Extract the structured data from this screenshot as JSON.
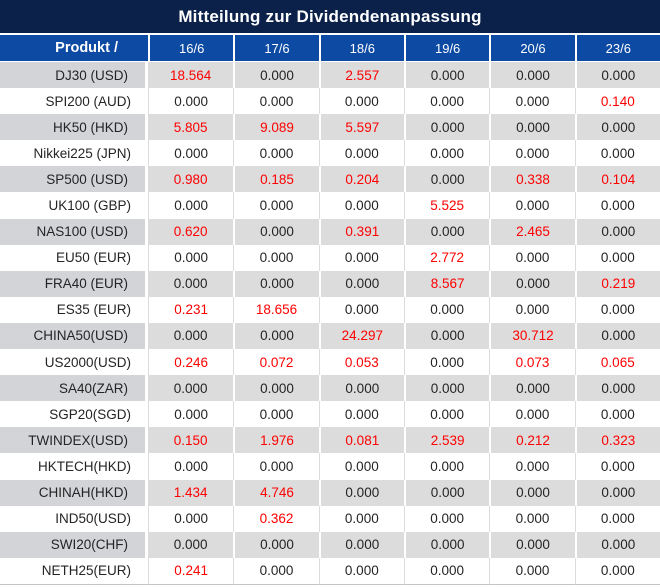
{
  "title": "Mitteilung zur Dividendenanpassung",
  "colors": {
    "title_bg": "#0b2149",
    "header_bg": "#0d4aa3",
    "row_stripe": "#dcdcdc",
    "label_stripe": "#d2d4d8",
    "value_highlight_red": "#fe0000",
    "value_text": "#242424"
  },
  "table": {
    "product_header": "Produkt /",
    "date_headers": [
      "16/6",
      "17/6",
      "18/6",
      "19/6",
      "20/6",
      "23/6"
    ],
    "zero_display": "0.000",
    "rows": [
      {
        "product": "DJ30 (USD)",
        "values": [
          "18.564",
          "0.000",
          "2.557",
          "0.000",
          "0.000",
          "0.000"
        ]
      },
      {
        "product": "SPI200 (AUD)",
        "values": [
          "0.000",
          "0.000",
          "0.000",
          "0.000",
          "0.000",
          "0.140"
        ]
      },
      {
        "product": "HK50 (HKD)",
        "values": [
          "5.805",
          "9.089",
          "5.597",
          "0.000",
          "0.000",
          "0.000"
        ]
      },
      {
        "product": "Nikkei225 (JPN)",
        "values": [
          "0.000",
          "0.000",
          "0.000",
          "0.000",
          "0.000",
          "0.000"
        ]
      },
      {
        "product": "SP500 (USD)",
        "values": [
          "0.980",
          "0.185",
          "0.204",
          "0.000",
          "0.338",
          "0.104"
        ]
      },
      {
        "product": "UK100 (GBP)",
        "values": [
          "0.000",
          "0.000",
          "0.000",
          "5.525",
          "0.000",
          "0.000"
        ]
      },
      {
        "product": "NAS100 (USD)",
        "values": [
          "0.620",
          "0.000",
          "0.391",
          "0.000",
          "2.465",
          "0.000"
        ]
      },
      {
        "product": "EU50 (EUR)",
        "values": [
          "0.000",
          "0.000",
          "0.000",
          "2.772",
          "0.000",
          "0.000"
        ]
      },
      {
        "product": "FRA40 (EUR)",
        "values": [
          "0.000",
          "0.000",
          "0.000",
          "8.567",
          "0.000",
          "0.219"
        ]
      },
      {
        "product": "ES35 (EUR)",
        "values": [
          "0.231",
          "18.656",
          "0.000",
          "0.000",
          "0.000",
          "0.000"
        ]
      },
      {
        "product": "CHINA50(USD)",
        "values": [
          "0.000",
          "0.000",
          "24.297",
          "0.000",
          "30.712",
          "0.000"
        ]
      },
      {
        "product": "US2000(USD)",
        "values": [
          "0.246",
          "0.072",
          "0.053",
          "0.000",
          "0.073",
          "0.065"
        ]
      },
      {
        "product": "SA40(ZAR)",
        "values": [
          "0.000",
          "0.000",
          "0.000",
          "0.000",
          "0.000",
          "0.000"
        ]
      },
      {
        "product": "SGP20(SGD)",
        "values": [
          "0.000",
          "0.000",
          "0.000",
          "0.000",
          "0.000",
          "0.000"
        ]
      },
      {
        "product": "TWINDEX(USD)",
        "values": [
          "0.150",
          "1.976",
          "0.081",
          "2.539",
          "0.212",
          "0.323"
        ]
      },
      {
        "product": "HKTECH(HKD)",
        "values": [
          "0.000",
          "0.000",
          "0.000",
          "0.000",
          "0.000",
          "0.000"
        ]
      },
      {
        "product": "CHINAH(HKD)",
        "values": [
          "1.434",
          "4.746",
          "0.000",
          "0.000",
          "0.000",
          "0.000"
        ]
      },
      {
        "product": "IND50(USD)",
        "values": [
          "0.000",
          "0.362",
          "0.000",
          "0.000",
          "0.000",
          "0.000"
        ]
      },
      {
        "product": "SWI20(CHF)",
        "values": [
          "0.000",
          "0.000",
          "0.000",
          "0.000",
          "0.000",
          "0.000"
        ]
      },
      {
        "product": "NETH25(EUR)",
        "values": [
          "0.241",
          "0.000",
          "0.000",
          "0.000",
          "0.000",
          "0.000"
        ]
      }
    ]
  },
  "chart_data": {
    "type": "table",
    "title": "Mitteilung zur Dividendenanpassung",
    "columns": [
      "Produkt /",
      "16/6",
      "17/6",
      "18/6",
      "19/6",
      "20/6",
      "23/6"
    ],
    "rows": [
      [
        "DJ30 (USD)",
        18.564,
        0.0,
        2.557,
        0.0,
        0.0,
        0.0
      ],
      [
        "SPI200 (AUD)",
        0.0,
        0.0,
        0.0,
        0.0,
        0.0,
        0.14
      ],
      [
        "HK50 (HKD)",
        5.805,
        9.089,
        5.597,
        0.0,
        0.0,
        0.0
      ],
      [
        "Nikkei225 (JPN)",
        0.0,
        0.0,
        0.0,
        0.0,
        0.0,
        0.0
      ],
      [
        "SP500 (USD)",
        0.98,
        0.185,
        0.204,
        0.0,
        0.338,
        0.104
      ],
      [
        "UK100 (GBP)",
        0.0,
        0.0,
        0.0,
        5.525,
        0.0,
        0.0
      ],
      [
        "NAS100 (USD)",
        0.62,
        0.0,
        0.391,
        0.0,
        2.465,
        0.0
      ],
      [
        "EU50 (EUR)",
        0.0,
        0.0,
        0.0,
        2.772,
        0.0,
        0.0
      ],
      [
        "FRA40 (EUR)",
        0.0,
        0.0,
        0.0,
        8.567,
        0.0,
        0.219
      ],
      [
        "ES35 (EUR)",
        0.231,
        18.656,
        0.0,
        0.0,
        0.0,
        0.0
      ],
      [
        "CHINA50(USD)",
        0.0,
        0.0,
        24.297,
        0.0,
        30.712,
        0.0
      ],
      [
        "US2000(USD)",
        0.246,
        0.072,
        0.053,
        0.0,
        0.073,
        0.065
      ],
      [
        "SA40(ZAR)",
        0.0,
        0.0,
        0.0,
        0.0,
        0.0,
        0.0
      ],
      [
        "SGP20(SGD)",
        0.0,
        0.0,
        0.0,
        0.0,
        0.0,
        0.0
      ],
      [
        "TWINDEX(USD)",
        0.15,
        1.976,
        0.081,
        2.539,
        0.212,
        0.323
      ],
      [
        "HKTECH(HKD)",
        0.0,
        0.0,
        0.0,
        0.0,
        0.0,
        0.0
      ],
      [
        "CHINAH(HKD)",
        1.434,
        4.746,
        0.0,
        0.0,
        0.0,
        0.0
      ],
      [
        "IND50(USD)",
        0.0,
        0.362,
        0.0,
        0.0,
        0.0,
        0.0
      ],
      [
        "SWI20(CHF)",
        0.0,
        0.0,
        0.0,
        0.0,
        0.0,
        0.0
      ],
      [
        "NETH25(EUR)",
        0.241,
        0.0,
        0.0,
        0.0,
        0.0,
        0.0
      ]
    ],
    "notes": "Nonzero dividend adjustment values rendered in red (#fe0000); zeros in dark gray/black."
  }
}
